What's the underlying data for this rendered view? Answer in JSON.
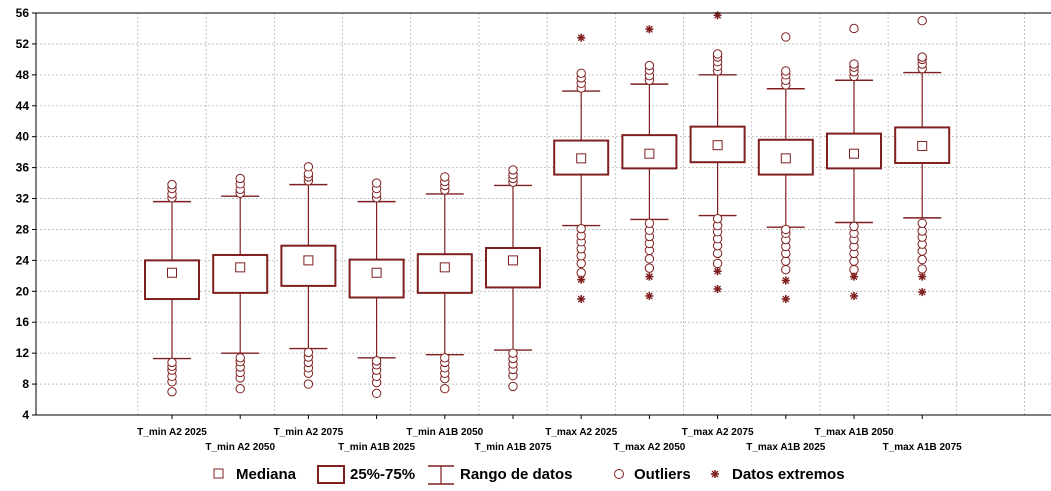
{
  "chart_data": {
    "type": "boxplot",
    "title": "",
    "xlabel": "",
    "ylabel": "",
    "ylim": [
      4,
      56
    ],
    "yticks": [
      4,
      8,
      12,
      16,
      20,
      24,
      28,
      32,
      36,
      40,
      44,
      48,
      52,
      56
    ],
    "grid": true,
    "legend_position": "bottom",
    "legend": [
      "Mediana",
      "25%-75%",
      "Rango de datos",
      "Outliers",
      "Datos extremos"
    ],
    "color": "#7f1f1f",
    "categories": [
      "T_min A2 2025",
      "T_min A2 2050",
      "T_min A2 2075",
      "T_min A1B 2025",
      "T_min A1B 2050",
      "T_min A1B 2075",
      "T_max A2 2025",
      "T_max A2 2050",
      "T_max A2 2075",
      "T_max A1B 2025",
      "T_max A1B 2050",
      "T_max A1B 2075"
    ],
    "median": [
      22.4,
      23.1,
      24.0,
      22.4,
      23.1,
      24.0,
      37.2,
      37.8,
      38.9,
      37.2,
      37.8,
      38.8
    ],
    "q1": [
      19.0,
      19.8,
      20.7,
      19.2,
      19.8,
      20.5,
      35.1,
      35.9,
      36.7,
      35.1,
      35.9,
      36.6
    ],
    "q3": [
      24.0,
      24.7,
      25.9,
      24.1,
      24.8,
      25.6,
      39.5,
      40.2,
      41.3,
      39.6,
      40.4,
      41.2
    ],
    "whisker_low": [
      11.3,
      12.0,
      12.6,
      11.4,
      11.8,
      12.4,
      28.5,
      29.3,
      29.8,
      28.3,
      28.9,
      29.5
    ],
    "whisker_high": [
      31.6,
      32.3,
      33.8,
      31.6,
      32.6,
      33.7,
      45.9,
      46.8,
      48.0,
      46.2,
      47.3,
      48.3
    ],
    "outliers": [
      [
        7.0,
        8.3,
        9.0,
        9.8,
        10.3,
        10.8,
        32.1,
        32.6,
        33.3,
        33.8
      ],
      [
        7.4,
        8.8,
        9.5,
        10.2,
        10.9,
        11.4,
        32.7,
        33.2,
        33.9,
        34.6
      ],
      [
        8.0,
        9.4,
        10.1,
        10.8,
        11.5,
        12.1,
        34.3,
        34.8,
        35.2,
        36.1
      ],
      [
        6.8,
        8.2,
        9.0,
        9.8,
        10.5,
        11.0,
        32.1,
        32.6,
        33.3,
        34.0
      ],
      [
        7.4,
        8.7,
        9.4,
        10.1,
        10.8,
        11.4,
        33.1,
        33.7,
        34.2,
        34.8
      ],
      [
        7.7,
        9.1,
        9.9,
        10.6,
        11.3,
        12.0,
        34.1,
        34.6,
        35.1,
        35.7
      ],
      [
        22.4,
        23.6,
        24.6,
        25.5,
        26.4,
        27.2,
        28.1,
        46.3,
        46.9,
        47.6,
        48.2
      ],
      [
        23.0,
        24.2,
        25.3,
        26.2,
        27.1,
        27.9,
        28.8,
        47.3,
        47.9,
        48.6,
        49.2
      ],
      [
        23.6,
        24.9,
        25.9,
        26.8,
        27.7,
        28.5,
        29.4,
        48.5,
        49.1,
        49.7,
        50.3,
        50.7
      ],
      [
        22.8,
        23.9,
        24.9,
        25.8,
        26.7,
        27.5,
        28.0,
        46.7,
        47.3,
        48.0,
        48.5,
        52.9
      ],
      [
        22.8,
        23.9,
        24.9,
        25.8,
        26.7,
        27.5,
        28.4,
        47.8,
        48.4,
        49.0,
        49.4,
        54.0
      ],
      [
        22.9,
        24.1,
        25.2,
        26.1,
        27.0,
        27.8,
        28.8,
        48.8,
        49.4,
        50.0,
        50.3,
        55.0
      ]
    ],
    "extremes": [
      [],
      [],
      [],
      [],
      [],
      [],
      [
        19.0,
        21.5,
        52.8
      ],
      [
        19.4,
        21.9,
        53.9
      ],
      [
        20.3,
        22.6,
        55.7
      ],
      [
        19.0,
        21.4
      ],
      [
        19.4,
        21.9
      ],
      [
        19.9,
        21.9
      ]
    ]
  }
}
